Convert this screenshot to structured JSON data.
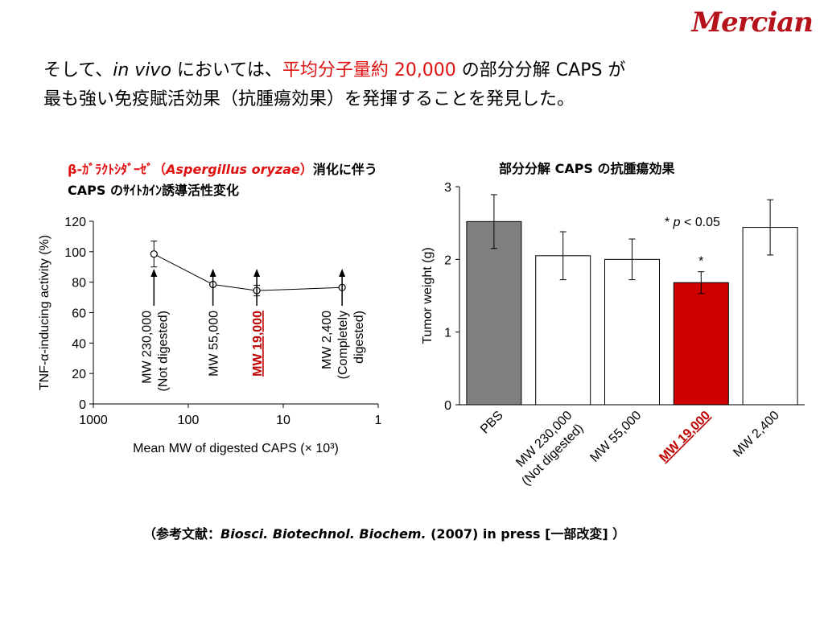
{
  "logo": {
    "text": "Mercian"
  },
  "headline": {
    "line1_a": "そして、",
    "line1_italic": "in vivo",
    "line1_b": " においては、",
    "line1_red": "平均分子量約 20,000",
    "line1_c": " の部分分解 CAPS が",
    "line2": "最も強い免疫賦活効果（抗腫瘍効果）を発揮することを発見した。"
  },
  "left_title": {
    "red_prefix": "β-ｶﾞﾗｸﾄｼﾀﾞｰｾﾞ（",
    "red_italic": "Aspergillus oryzae",
    "red_suffix": "）",
    "black_rest": "消化に伴う CAPS のｻｲﾄｶｲﾝ誘導活性変化"
  },
  "right_title": {
    "text": "部分分解 CAPS の抗腫瘍効果"
  },
  "reference": {
    "prefix": "（参考文献：",
    "journal": "Biosci. Biotechnol. Biochem.",
    "suffix": " (2007) in press [一部改変] ）"
  },
  "chart_data": [
    {
      "type": "line",
      "xlabel": "Mean MW of digested CAPS (× 10³)",
      "ylabel": "TNF-α-inducing activity (%)",
      "xscale": "log",
      "xlim": [
        1000,
        1
      ],
      "x_ticks": [
        1000,
        100,
        10,
        1
      ],
      "x_tick_labels": [
        "1000",
        "100",
        "10",
        "1"
      ],
      "ylim": [
        0,
        120
      ],
      "y_ticks": [
        0,
        20,
        40,
        60,
        80,
        100,
        120
      ],
      "series": [
        {
          "x": [
            230,
            55,
            19,
            2.4
          ],
          "y": [
            98.5,
            78.5,
            74.5,
            76.5
          ],
          "err": [
            8.5,
            0,
            3.5,
            0
          ]
        }
      ],
      "annotations": [
        {
          "x": 230,
          "lines": [
            "MW 230,000",
            "(Not digested)"
          ],
          "highlight": false
        },
        {
          "x": 55,
          "lines": [
            "MW 55,000"
          ],
          "highlight": false
        },
        {
          "x": 19,
          "lines": [
            "MW 19,000"
          ],
          "highlight": true
        },
        {
          "x": 2.4,
          "lines": [
            "MW 2,400",
            "(Completely",
            "digested)"
          ],
          "highlight": false
        }
      ],
      "highlight_color": "#c00000"
    },
    {
      "type": "bar",
      "ylabel": "Tumor weight (g)",
      "ylim": [
        0,
        3
      ],
      "y_ticks": [
        0,
        1,
        2,
        3
      ],
      "categories": [
        [
          "PBS"
        ],
        [
          "MW 230,000",
          "(Not digested)"
        ],
        [
          "MW 55,000"
        ],
        [
          "MW 19,000"
        ],
        [
          "MW 2,400"
        ]
      ],
      "values": [
        2.52,
        2.05,
        2.0,
        1.68,
        2.44
      ],
      "errors": [
        0.37,
        0.33,
        0.28,
        0.15,
        0.38
      ],
      "significant": [
        false,
        false,
        false,
        true,
        false
      ],
      "bar_colors": [
        "#808080",
        "#ffffff",
        "#ffffff",
        "#cc0000",
        "#ffffff"
      ],
      "highlight_category": 3,
      "highlight_color": "#c00000",
      "significance_mark": "*",
      "legend_note": {
        "star": "*",
        "p": "p",
        "rest": " < 0.05"
      }
    }
  ]
}
